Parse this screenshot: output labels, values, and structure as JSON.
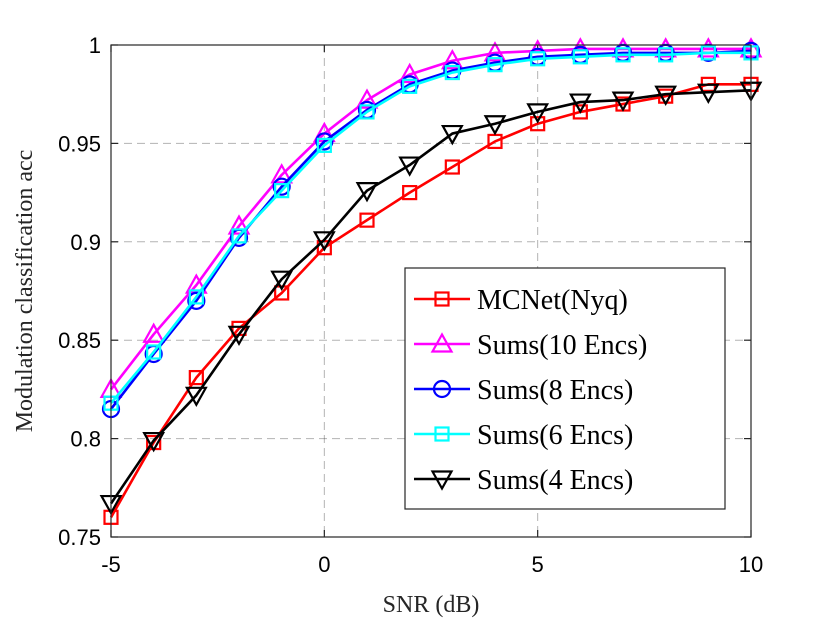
{
  "chart_data": {
    "type": "line",
    "title": "",
    "xlabel": "SNR (dB)",
    "ylabel": "Modulation classification acc",
    "xlim": [
      -5,
      10
    ],
    "ylim": [
      0.75,
      1
    ],
    "grid": true,
    "grid_style": "dashed",
    "legend_position": "bottom-right",
    "x_ticks": [
      -5,
      0,
      5,
      10
    ],
    "x_tick_labels": [
      "-5",
      "0",
      "5",
      "10"
    ],
    "y_ticks": [
      0.75,
      0.8,
      0.85,
      0.9,
      0.95,
      1
    ],
    "y_tick_labels": [
      "0.75",
      "0.8",
      "0.85",
      "0.9",
      "0.95",
      "1"
    ],
    "x": [
      -5,
      -4,
      -3,
      -2,
      -1,
      0,
      1,
      2,
      3,
      4,
      5,
      6,
      7,
      8,
      9,
      10
    ],
    "series": [
      {
        "name": "MCNet(Nyq)",
        "color": "#ff0000",
        "marker": "square",
        "values": [
          0.76,
          0.798,
          0.831,
          0.856,
          0.874,
          0.897,
          0.911,
          0.925,
          0.938,
          0.951,
          0.96,
          0.966,
          0.97,
          0.974,
          0.98,
          0.98
        ]
      },
      {
        "name": "Sums(10 Encs)",
        "color": "#ff00ff",
        "marker": "triangle-up",
        "values": [
          0.825,
          0.853,
          0.878,
          0.908,
          0.934,
          0.955,
          0.972,
          0.985,
          0.992,
          0.996,
          0.997,
          0.998,
          0.998,
          0.998,
          0.998,
          0.998
        ]
      },
      {
        "name": "Sums(8 Encs)",
        "color": "#0000ff",
        "marker": "circle",
        "values": [
          0.815,
          0.843,
          0.87,
          0.902,
          0.928,
          0.951,
          0.967,
          0.98,
          0.987,
          0.991,
          0.994,
          0.995,
          0.996,
          0.996,
          0.996,
          0.997
        ]
      },
      {
        "name": "Sums(6 Encs)",
        "color": "#00ffff",
        "marker": "square",
        "values": [
          0.818,
          0.844,
          0.872,
          0.903,
          0.926,
          0.949,
          0.966,
          0.979,
          0.986,
          0.99,
          0.993,
          0.994,
          0.995,
          0.995,
          0.996,
          0.996
        ]
      },
      {
        "name": "Sums(4 Encs)",
        "color": "#000000",
        "marker": "triangle-down",
        "values": [
          0.767,
          0.799,
          0.822,
          0.853,
          0.881,
          0.901,
          0.926,
          0.939,
          0.955,
          0.96,
          0.966,
          0.971,
          0.972,
          0.975,
          0.976,
          0.977
        ]
      }
    ]
  }
}
